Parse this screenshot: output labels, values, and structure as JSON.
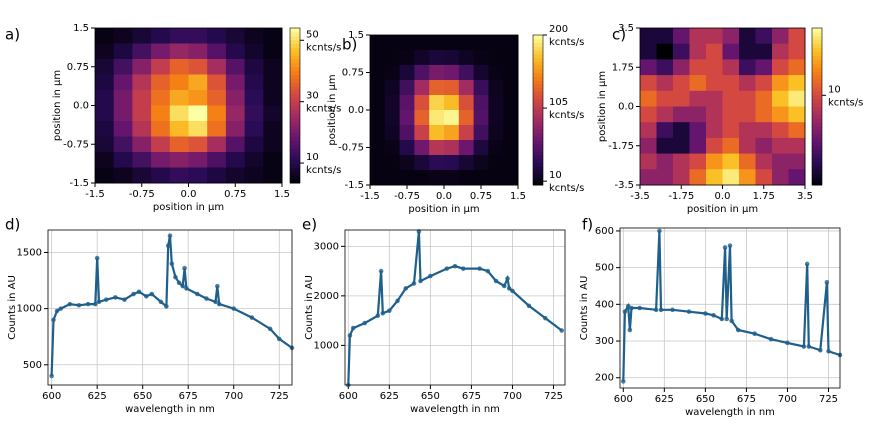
{
  "chart_data": [
    {
      "panel": "a)",
      "type": "heatmap",
      "colormap": "inferno",
      "xlim": [
        -1.5,
        1.5
      ],
      "ylim": [
        -1.5,
        1.5
      ],
      "xticks": [
        -1.5,
        -0.75,
        {
          "value": 0,
          "label": "0.0"
        },
        0.75,
        1.5
      ],
      "yticks": [
        -1.5,
        -0.75,
        {
          "value": 0,
          "label": "0.0"
        },
        0.75,
        1.5
      ],
      "xlabel": "position in μm",
      "ylabel": "position in μm",
      "z": [
        [
          5,
          6,
          8,
          10,
          12,
          12,
          10,
          8,
          6,
          5
        ],
        [
          6,
          9,
          14,
          20,
          24,
          22,
          16,
          10,
          7,
          5
        ],
        [
          8,
          14,
          22,
          30,
          36,
          34,
          26,
          16,
          9,
          6
        ],
        [
          9,
          18,
          28,
          36,
          40,
          44,
          34,
          20,
          10,
          6
        ],
        [
          10,
          20,
          30,
          38,
          44,
          42,
          36,
          22,
          11,
          6
        ],
        [
          10,
          20,
          30,
          40,
          50,
          54,
          40,
          24,
          12,
          7
        ],
        [
          9,
          18,
          28,
          38,
          46,
          50,
          38,
          22,
          11,
          6
        ],
        [
          8,
          14,
          22,
          30,
          36,
          34,
          26,
          16,
          9,
          6
        ],
        [
          6,
          10,
          14,
          20,
          22,
          20,
          15,
          10,
          7,
          5
        ],
        [
          5,
          6,
          8,
          10,
          12,
          11,
          9,
          7,
          6,
          5
        ]
      ],
      "colorbar": {
        "lim": [
          3.5,
          54
        ],
        "ticks": [
          10,
          30,
          50
        ],
        "unit": "kcnts/s"
      }
    },
    {
      "panel": "b)",
      "type": "heatmap",
      "colormap": "inferno",
      "xlim": [
        -1.5,
        1.5
      ],
      "ylim": [
        -1.5,
        1.5
      ],
      "xticks": [
        -1.5,
        -0.75,
        {
          "value": 0,
          "label": "0.0"
        },
        0.75,
        1.5
      ],
      "yticks": [
        -1.5,
        -0.75,
        {
          "value": 0,
          "label": "0.0"
        },
        0.75,
        1.5
      ],
      "xlabel": "position in μm",
      "ylabel": "position in μm",
      "z": [
        [
          10,
          10,
          10,
          10,
          10,
          10,
          10,
          10,
          10,
          10
        ],
        [
          10,
          10,
          12,
          18,
          24,
          22,
          16,
          12,
          10,
          10
        ],
        [
          10,
          12,
          24,
          50,
          70,
          66,
          44,
          20,
          12,
          10
        ],
        [
          10,
          16,
          44,
          90,
          130,
          128,
          90,
          40,
          14,
          10
        ],
        [
          10,
          18,
          56,
          120,
          180,
          170,
          120,
          50,
          16,
          10
        ],
        [
          10,
          18,
          60,
          130,
          190,
          196,
          130,
          52,
          16,
          10
        ],
        [
          10,
          16,
          50,
          110,
          170,
          160,
          110,
          44,
          14,
          10
        ],
        [
          10,
          12,
          30,
          66,
          100,
          96,
          64,
          26,
          12,
          10
        ],
        [
          10,
          10,
          14,
          24,
          34,
          32,
          22,
          14,
          10,
          10
        ],
        [
          10,
          10,
          10,
          10,
          12,
          12,
          10,
          10,
          10,
          10
        ]
      ],
      "colorbar": {
        "lim": [
          5,
          200
        ],
        "ticks": [
          10,
          105,
          200
        ],
        "unit": "kcnts/s"
      }
    },
    {
      "panel": "c)",
      "type": "heatmap",
      "colormap": "inferno",
      "xlim": [
        -3.5,
        3.5
      ],
      "ylim": [
        -3.5,
        3.5
      ],
      "xticks": [
        -3.5,
        -1.75,
        {
          "value": 0,
          "label": "0.0"
        },
        1.75,
        3.5
      ],
      "yticks": [
        -3.5,
        -1.75,
        {
          "value": 0,
          "label": "0.0"
        },
        1.75,
        3.5
      ],
      "xlabel": "position in μm",
      "ylabel": "position in μm",
      "z": [
        [
          5,
          5,
          7,
          9,
          9,
          8,
          5,
          6,
          8,
          10
        ],
        [
          5,
          4,
          6,
          9,
          10,
          7,
          5,
          5,
          9,
          10
        ],
        [
          7,
          6,
          8,
          10,
          10,
          9,
          6,
          7,
          10,
          11
        ],
        [
          10,
          9,
          10,
          11,
          10,
          10,
          9,
          10,
          12,
          13
        ],
        [
          11,
          10,
          10,
          9,
          9,
          10,
          10,
          11,
          13,
          14
        ],
        [
          10,
          9,
          8,
          8,
          9,
          10,
          10,
          11,
          12,
          13
        ],
        [
          9,
          6,
          5,
          7,
          9,
          10,
          9,
          9,
          10,
          11
        ],
        [
          8,
          5,
          5,
          7,
          10,
          11,
          9,
          8,
          9,
          9
        ],
        [
          9,
          8,
          9,
          10,
          12,
          13,
          11,
          9,
          8,
          8
        ],
        [
          8,
          8,
          9,
          11,
          13,
          14,
          12,
          10,
          8,
          7
        ]
      ],
      "colorbar": {
        "lim": [
          4,
          14.5
        ],
        "ticks": [
          10
        ],
        "unit": "kcnts/s"
      }
    },
    {
      "panel": "d)",
      "type": "line",
      "color": "#1f5f8b",
      "grid": true,
      "xlabel": "wavelength in nm",
      "ylabel": "Counts in AU",
      "xlim": [
        598,
        732
      ],
      "ylim": [
        320,
        1700
      ],
      "xticks": [
        600,
        625,
        650,
        675,
        700,
        725
      ],
      "yticks": [
        500,
        1000,
        1500
      ],
      "x": [
        600,
        601,
        603,
        605,
        610,
        615,
        620,
        624,
        625,
        626,
        630,
        635,
        640,
        645,
        648,
        652,
        655,
        660,
        663,
        664,
        665,
        666,
        668,
        670,
        672,
        673,
        674,
        680,
        685,
        690,
        691,
        692,
        700,
        710,
        720,
        725,
        732
      ],
      "values": [
        400,
        900,
        980,
        1000,
        1040,
        1030,
        1040,
        1040,
        1450,
        1060,
        1080,
        1100,
        1080,
        1130,
        1150,
        1110,
        1130,
        1060,
        1020,
        1560,
        1650,
        1400,
        1280,
        1230,
        1200,
        1360,
        1180,
        1130,
        1090,
        1060,
        1200,
        1040,
        1000,
        920,
        820,
        730,
        650
      ]
    },
    {
      "panel": "e)",
      "type": "line",
      "color": "#1f5f8b",
      "grid": true,
      "xlabel": "wavelength in nm",
      "ylabel": "Counts in AU",
      "xlim": [
        598,
        732
      ],
      "ylim": [
        200,
        3330
      ],
      "xticks": [
        600,
        625,
        650,
        675,
        700,
        725
      ],
      "yticks": [
        1000,
        2000,
        3000
      ],
      "x": [
        600,
        601,
        603,
        610,
        618,
        620,
        621,
        625,
        630,
        635,
        640,
        643,
        644,
        650,
        660,
        665,
        670,
        680,
        685,
        690,
        695,
        697,
        698,
        700,
        710,
        720,
        730
      ],
      "values": [
        200,
        1200,
        1350,
        1450,
        1600,
        2500,
        1650,
        1700,
        1900,
        2150,
        2250,
        3300,
        2300,
        2400,
        2550,
        2600,
        2550,
        2550,
        2500,
        2300,
        2200,
        2350,
        2150,
        2100,
        1800,
        1550,
        1300
      ]
    },
    {
      "panel": "f)",
      "type": "line",
      "color": "#1f5f8b",
      "grid": true,
      "xlabel": "wavelength in nm",
      "ylabel": "Counts in AU",
      "xlim": [
        598,
        732
      ],
      "ylim": [
        172,
        608
      ],
      "xticks": [
        600,
        625,
        650,
        675,
        700,
        725
      ],
      "yticks": [
        200,
        300,
        400,
        500,
        600
      ],
      "x": [
        600,
        601,
        603,
        604,
        605,
        610,
        620,
        622,
        623,
        630,
        640,
        650,
        655,
        660,
        662,
        663,
        665,
        666,
        670,
        680,
        690,
        700,
        710,
        712,
        713,
        720,
        724,
        725,
        732
      ],
      "values": [
        190,
        380,
        395,
        330,
        390,
        390,
        385,
        600,
        385,
        385,
        380,
        375,
        370,
        360,
        555,
        360,
        560,
        355,
        330,
        320,
        305,
        295,
        285,
        510,
        285,
        275,
        460,
        272,
        262
      ]
    }
  ]
}
